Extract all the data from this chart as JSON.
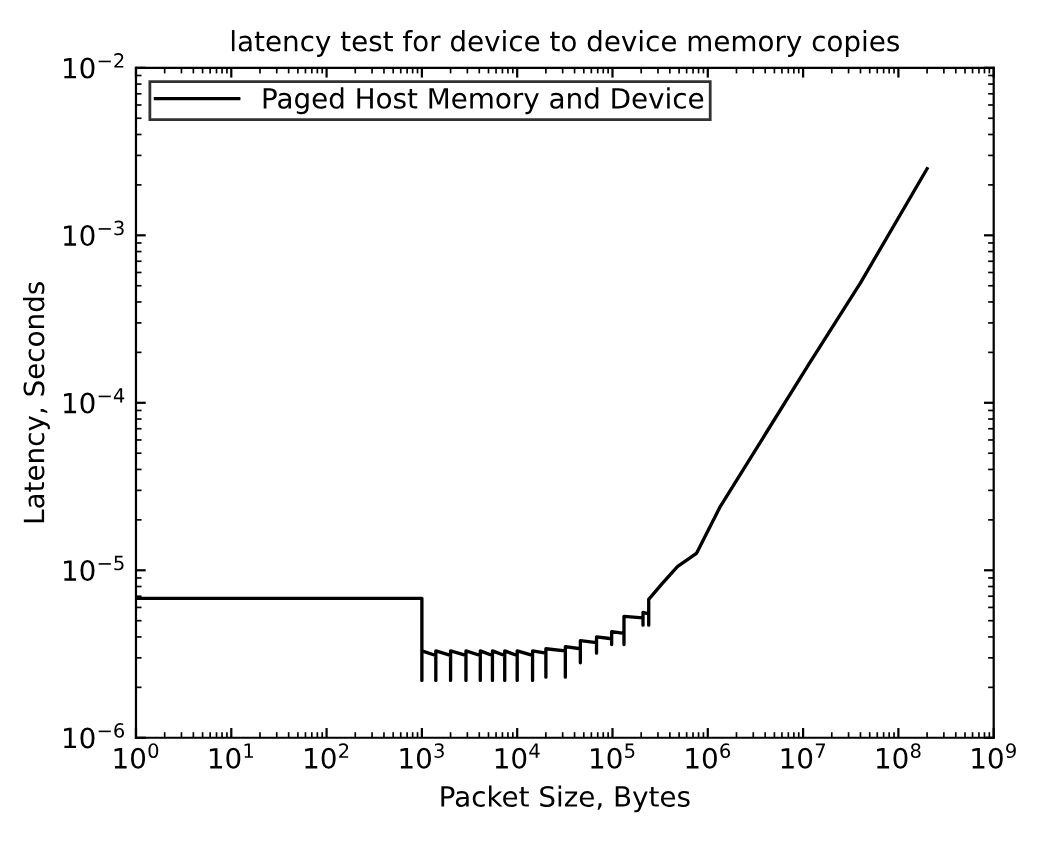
{
  "chart_data": {
    "type": "line",
    "title": "latency test for device to device memory copies",
    "xlabel": "Packet Size, Bytes",
    "ylabel": "Latency, Seconds",
    "log": "xy",
    "xlim": [
      1,
      1000000000
    ],
    "ylim": [
      1e-06,
      0.01
    ],
    "xticks": [
      {
        "value": 1,
        "label": "10$^{0}$"
      },
      {
        "value": 10,
        "label": "10$^{1}$"
      },
      {
        "value": 100,
        "label": "10$^{2}$"
      },
      {
        "value": 1000,
        "label": "10$^{3}$"
      },
      {
        "value": 10000,
        "label": "10$^{4}$"
      },
      {
        "value": 100000,
        "label": "10$^{5}$"
      },
      {
        "value": 1000000,
        "label": "10$^{6}$"
      },
      {
        "value": 10000000,
        "label": "10$^{7}$"
      },
      {
        "value": 100000000,
        "label": "10$^{8}$"
      },
      {
        "value": 1000000000,
        "label": "10$^{9}$"
      }
    ],
    "yticks": [
      {
        "value": 1e-06,
        "label": "10$^{−6}$"
      },
      {
        "value": 1e-05,
        "label": "10$^{−5}$"
      },
      {
        "value": 0.0001,
        "label": "10$^{−4}$"
      },
      {
        "value": 0.001,
        "label": "10$^{−3}$"
      },
      {
        "value": 0.01,
        "label": "10$^{−2}$"
      }
    ],
    "grid": false,
    "legend": "top left",
    "marker": "none",
    "line_style": "solid",
    "series": [
      {
        "name": "Paged Host Memory and Device",
        "color": "#000000",
        "x": [
          1,
          1000,
          1000,
          1000,
          1400,
          1400,
          1400,
          2000,
          2000,
          2000,
          2900,
          2900,
          2900,
          4100,
          4100,
          4100,
          5500,
          5500,
          5500,
          7400,
          7400,
          7400,
          10000,
          10000,
          10000,
          14500,
          14500,
          14500,
          20000,
          20000,
          20000,
          32000,
          32000,
          32000,
          46000,
          46000,
          46000,
          68000,
          68000,
          68000,
          98000,
          98000,
          98000,
          132000,
          132000,
          132000,
          209000,
          209000,
          209000,
          240000,
          240000,
          240000,
          330000,
          480000,
          760000,
          1350000,
          11500000,
          40000000,
          200000000
        ],
        "values": [
          6.8e-06,
          6.8e-06,
          2.2e-06,
          3.3e-06,
          3.1e-06,
          2.2e-06,
          3.3e-06,
          3.1e-06,
          2.2e-06,
          3.3e-06,
          3.1e-06,
          2.2e-06,
          3.3e-06,
          3.1e-06,
          2.2e-06,
          3.3e-06,
          3.1e-06,
          2.2e-06,
          3.3e-06,
          3.1e-06,
          2.2e-06,
          3.3e-06,
          3.1e-06,
          2.2e-06,
          3.3e-06,
          3.1e-06,
          2.2e-06,
          3.3e-06,
          3.2e-06,
          2.3e-06,
          3.4e-06,
          3.3e-06,
          2.3e-06,
          3.5e-06,
          3.4e-06,
          2.8e-06,
          3.8e-06,
          3.7e-06,
          3.2e-06,
          4e-06,
          3.9e-06,
          3.6e-06,
          4.3e-06,
          4.2e-06,
          3.6e-06,
          5.3e-06,
          5.2e-06,
          4.7e-06,
          5.6e-06,
          5.5e-06,
          4.7e-06,
          6.7e-06,
          8.3e-06,
          1.05e-05,
          1.26e-05,
          2.4e-05,
          0.00017,
          0.00052,
          0.0025
        ]
      }
    ]
  }
}
